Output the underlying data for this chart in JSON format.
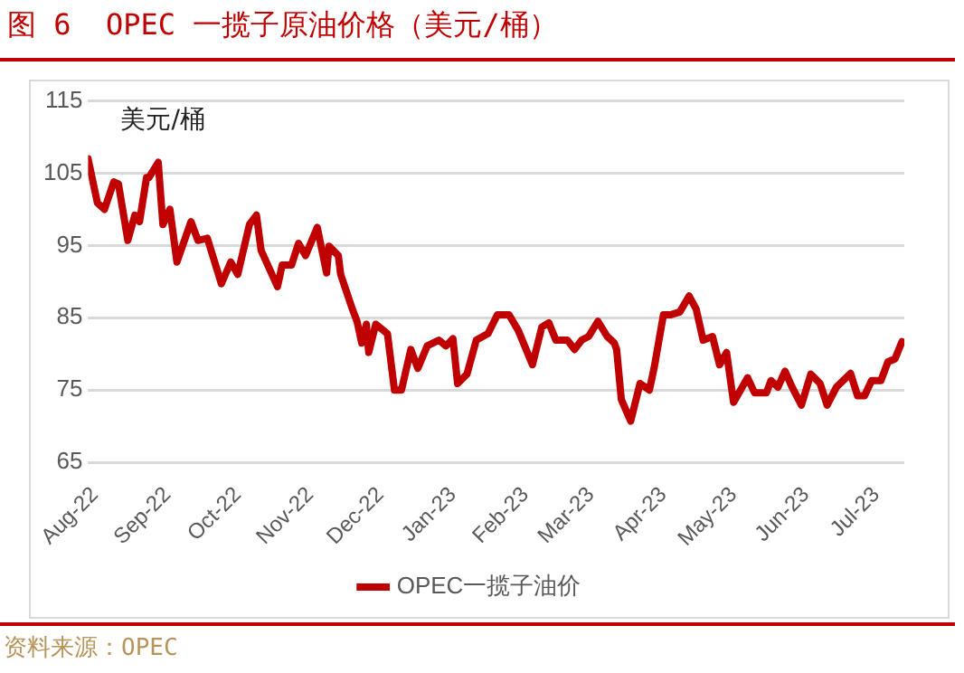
{
  "chart_data": {
    "type": "line",
    "title": "图 6  OPEC 一揽子原油价格（美元/桶）",
    "ylabel": "美元/桶",
    "annotations": [
      "资料来源：OPEC"
    ],
    "x": [
      "2022-07-29",
      "2022-08-02",
      "2022-08-05",
      "2022-08-09",
      "2022-08-11",
      "2022-08-15",
      "2022-08-18",
      "2022-08-20",
      "2022-08-23",
      "2022-08-24",
      "2022-08-28",
      "2022-08-30",
      "2022-09-02",
      "2022-09-05",
      "2022-09-11",
      "2022-09-14",
      "2022-09-18",
      "2022-09-24",
      "2022-09-28",
      "2022-10-01",
      "2022-10-06",
      "2022-10-09",
      "2022-10-11",
      "2022-10-18",
      "2022-10-20",
      "2022-10-24",
      "2022-10-27",
      "2022-10-30",
      "2022-11-04",
      "2022-11-08",
      "2022-11-09",
      "2022-11-13",
      "2022-11-14",
      "2022-11-19",
      "2022-11-21",
      "2022-11-23",
      "2022-11-25",
      "2022-11-26",
      "2022-11-29",
      "2022-12-04",
      "2022-12-07",
      "2022-12-10",
      "2022-12-14",
      "2022-12-17",
      "2022-12-21",
      "2022-12-26",
      "2022-12-29",
      "2023-01-01",
      "2023-01-03",
      "2023-01-07",
      "2023-01-11",
      "2023-01-16",
      "2023-01-20",
      "2023-01-25",
      "2023-01-29",
      "2023-02-04",
      "2023-02-08",
      "2023-02-11",
      "2023-02-14",
      "2023-02-19",
      "2023-02-22",
      "2023-02-25",
      "2023-02-28",
      "2023-03-04",
      "2023-03-08",
      "2023-03-11",
      "2023-03-12",
      "2023-03-14",
      "2023-03-18",
      "2023-03-22",
      "2023-03-26",
      "2023-03-28",
      "2023-04-01",
      "2023-04-04",
      "2023-04-08",
      "2023-04-12",
      "2023-04-15",
      "2023-04-18",
      "2023-04-22",
      "2023-04-25",
      "2023-04-28",
      "2023-05-01",
      "2023-05-07",
      "2023-05-10",
      "2023-05-15",
      "2023-05-17",
      "2023-05-20",
      "2023-05-23",
      "2023-05-26",
      "2023-05-30",
      "2023-06-03",
      "2023-06-07",
      "2023-06-10",
      "2023-06-14",
      "2023-06-20",
      "2023-06-23",
      "2023-06-26",
      "2023-06-29",
      "2023-07-03",
      "2023-07-06",
      "2023-07-09",
      "2023-07-12"
    ],
    "series": [
      {
        "name": "OPEC一揽子油价",
        "color": "#c00000",
        "values": [
          107,
          100.9,
          100,
          103.8,
          103.5,
          95.7,
          99.2,
          98.3,
          104.4,
          104.4,
          106.5,
          97.9,
          100,
          92.7,
          98.3,
          95.7,
          96,
          89.7,
          92.7,
          91,
          97.9,
          99.2,
          94.3,
          89.3,
          92.3,
          92.3,
          95.3,
          93.6,
          97.5,
          91.2,
          94.9,
          93.6,
          91,
          86.2,
          84.5,
          81.5,
          84.1,
          80.2,
          84.1,
          82.8,
          75,
          75,
          80.6,
          78,
          81.1,
          81.9,
          81.1,
          82.1,
          75.9,
          77.2,
          81.9,
          82.8,
          85.4,
          85.4,
          83.2,
          78.5,
          83.7,
          84.3,
          81.9,
          81.9,
          80.6,
          81.9,
          82.4,
          84.5,
          82.4,
          81.5,
          80.6,
          73.7,
          70.7,
          75.9,
          75,
          78,
          85.4,
          85.4,
          85.8,
          88,
          86.2,
          81.9,
          82.4,
          78.5,
          80.2,
          73.3,
          76.7,
          74.6,
          74.6,
          76.3,
          75.4,
          77.6,
          75.4,
          72.9,
          77.2,
          75.9,
          72.9,
          75.4,
          77.3,
          74.2,
          74.2,
          76.3,
          76.3,
          78.9,
          79.3,
          81.7
        ]
      }
    ],
    "xlim": [
      "2022-07-29",
      "2023-07-13"
    ],
    "xticks": [
      {
        "value": "2022-08-01",
        "label": "Aug-22"
      },
      {
        "value": "2022-09-01",
        "label": "Sep-22"
      },
      {
        "value": "2022-10-01",
        "label": "Oct-22"
      },
      {
        "value": "2022-11-01",
        "label": "Nov-22"
      },
      {
        "value": "2022-12-01",
        "label": "Dec-22"
      },
      {
        "value": "2023-01-01",
        "label": "Jan-23"
      },
      {
        "value": "2023-02-01",
        "label": "Feb-23"
      },
      {
        "value": "2023-03-01",
        "label": "Mar-23"
      },
      {
        "value": "2023-04-01",
        "label": "Apr-23"
      },
      {
        "value": "2023-05-01",
        "label": "May-23"
      },
      {
        "value": "2023-06-01",
        "label": "Jun-23"
      },
      {
        "value": "2023-07-01",
        "label": "Jul-23"
      }
    ],
    "ylim": [
      65,
      115
    ],
    "yticks": [
      65,
      75,
      85,
      95,
      105,
      115
    ],
    "grid": "y",
    "legend": "bottom",
    "marker": "none",
    "line_style": "solid"
  }
}
